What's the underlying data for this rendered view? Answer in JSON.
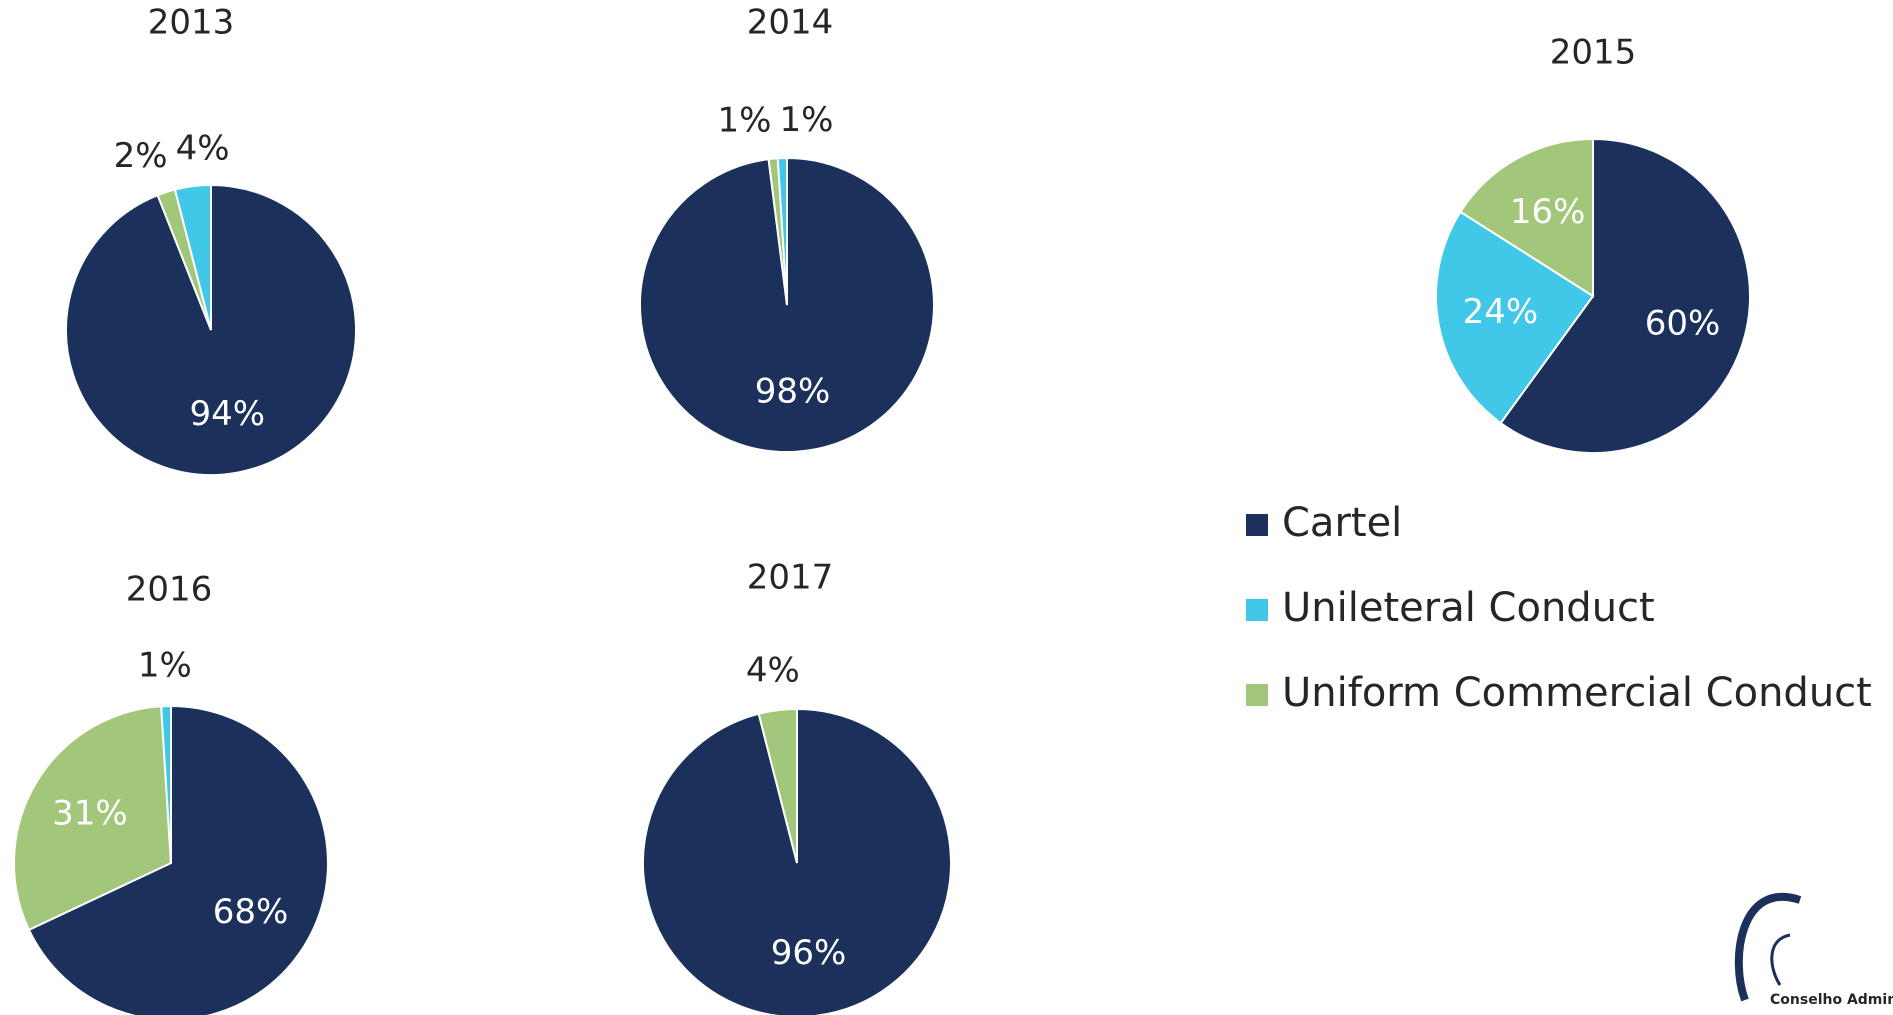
{
  "chart_data": [
    {
      "type": "pie",
      "title": "2013",
      "values": [
        94,
        2,
        4
      ],
      "value_labels": [
        "94%",
        "2%",
        "4%"
      ],
      "colors": [
        "#1b305b",
        "#a2c77a",
        "#41c8e8"
      ]
    },
    {
      "type": "pie",
      "title": "2014",
      "values": [
        98,
        1,
        1
      ],
      "value_labels": [
        "98%",
        "1%",
        "1%"
      ],
      "colors": [
        "#1b305b",
        "#a2c77a",
        "#41c8e8"
      ]
    },
    {
      "type": "pie",
      "title": "2015",
      "values": [
        60,
        24,
        16
      ],
      "value_labels": [
        "60%",
        "24%",
        "16%"
      ],
      "colors": [
        "#1b305b",
        "#41c8e8",
        "#a2c77a"
      ]
    },
    {
      "type": "pie",
      "title": "2016",
      "values": [
        68,
        31,
        1
      ],
      "value_labels": [
        "68%",
        "31%",
        "1%"
      ],
      "colors": [
        "#1b305b",
        "#a2c77a",
        "#41c8e8"
      ]
    },
    {
      "type": "pie",
      "title": "2017",
      "values": [
        96,
        4
      ],
      "value_labels": [
        "96%",
        "4%"
      ],
      "colors": [
        "#1b305b",
        "#a2c77a"
      ]
    }
  ],
  "legend": {
    "position": "right",
    "items": [
      {
        "name": "Cartel",
        "color": "#1b305b"
      },
      {
        "name": "Unileteral Conduct",
        "color": "#41c8e8"
      },
      {
        "name": "Uniform Commercial Conduct",
        "color": "#a2c77a"
      }
    ]
  },
  "logo_text": "Conselho Admin"
}
